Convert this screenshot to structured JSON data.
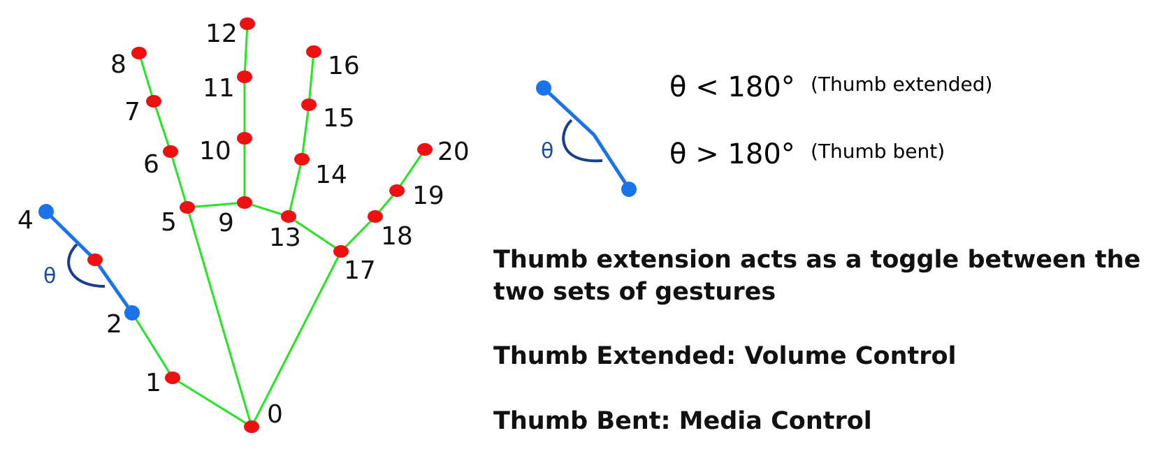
{
  "colors": {
    "bone": "#22e622",
    "joint": "#ee1111",
    "thumb_highlight": "#1a73e8",
    "theta_arc": "#173f8f",
    "text": "#111111"
  },
  "hand": {
    "landmarks": [
      "0",
      "1",
      "2",
      "4",
      "5",
      "6",
      "7",
      "8",
      "9",
      "10",
      "11",
      "12",
      "13",
      "14",
      "15",
      "16",
      "17",
      "18",
      "19",
      "20"
    ]
  },
  "thumb_angle": {
    "symbol": "θ",
    "rules": [
      {
        "condition": "θ < 180°",
        "meaning": "(Thumb extended)"
      },
      {
        "condition": "θ > 180°",
        "meaning": "(Thumb bent)"
      }
    ]
  },
  "captions": {
    "toggle_line1": "Thumb extension acts as a toggle between the",
    "toggle_line2": "two sets of gestures",
    "extended": "Thumb Extended: Volume Control",
    "bent": "Thumb Bent: Media Control"
  }
}
